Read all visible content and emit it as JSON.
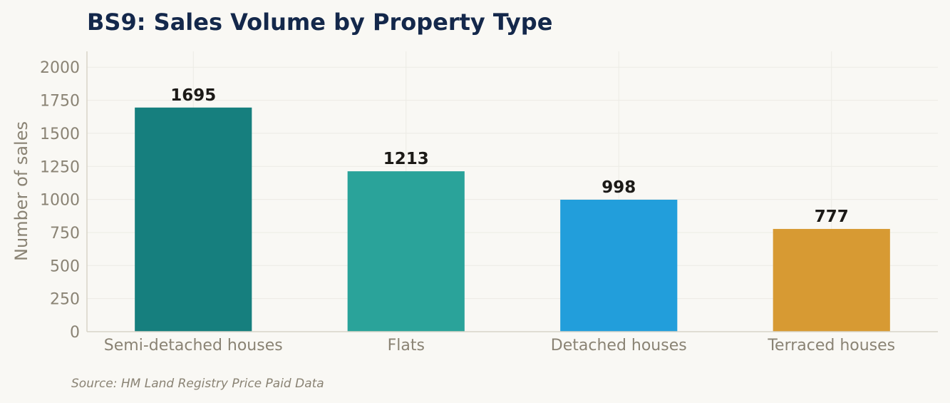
{
  "chart_data": {
    "type": "bar",
    "title": "BS9: Sales Volume by Property Type",
    "xlabel": "",
    "ylabel": "Number of sales",
    "categories": [
      "Semi-detached houses",
      "Flats",
      "Detached houses",
      "Terraced houses"
    ],
    "values": [
      1695,
      1213,
      998,
      777
    ],
    "value_labels": [
      "1695",
      "1213",
      "998",
      "777"
    ],
    "colors": [
      "#167f7e",
      "#2aa39a",
      "#229edb",
      "#d79a33"
    ],
    "ylim": [
      0,
      2120
    ],
    "yticks": [
      0,
      250,
      500,
      750,
      1000,
      1250,
      1500,
      1750,
      2000
    ],
    "ytick_labels": [
      "0",
      "250",
      "500",
      "750",
      "1000",
      "1250",
      "1500",
      "1750",
      "2000"
    ],
    "grid": true,
    "legend": "none"
  },
  "source_note": "Source: HM Land Registry Price Paid Data"
}
